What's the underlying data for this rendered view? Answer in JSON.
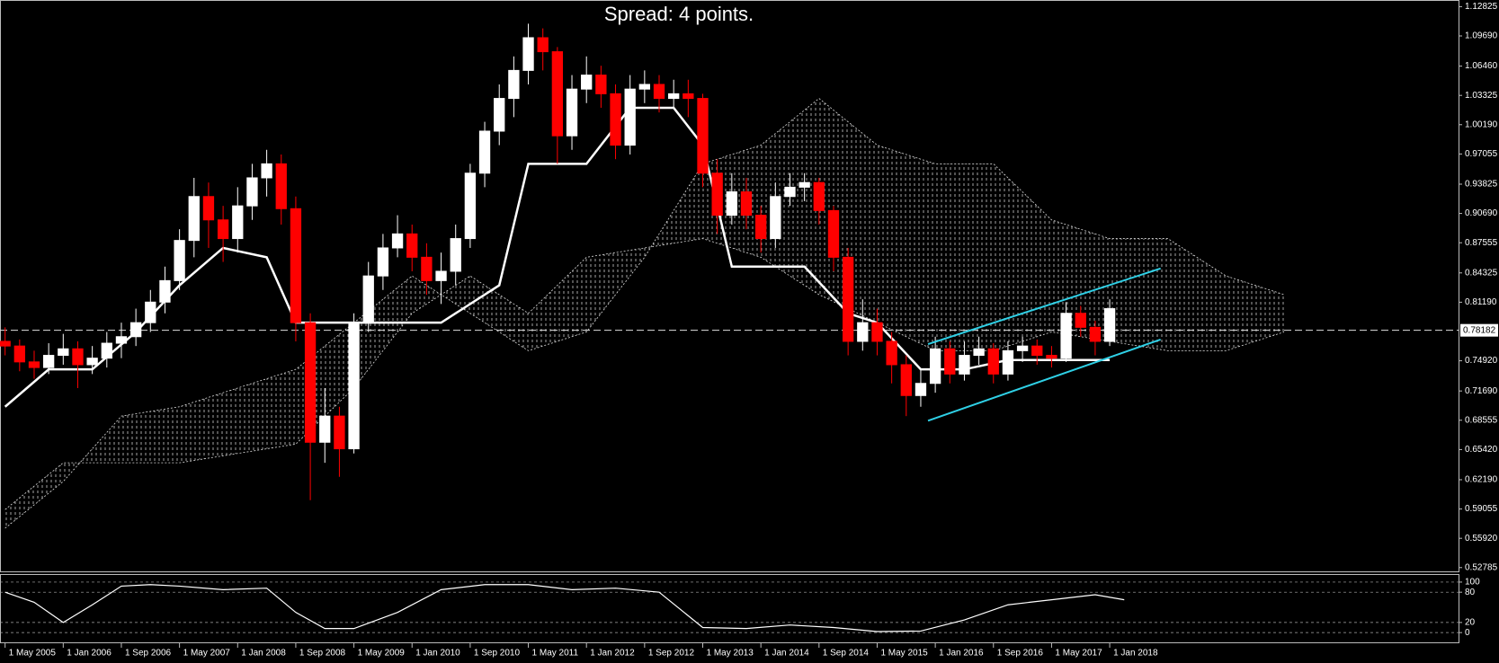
{
  "chart_data": [
    {
      "type": "candlestick",
      "title": "Spread: 4 points.",
      "x": [
        0,
        2,
        4,
        6,
        8,
        10,
        12,
        14,
        16,
        18,
        20,
        22,
        24,
        26,
        28,
        30,
        32,
        34,
        36,
        38,
        40,
        42,
        44,
        46,
        48,
        50,
        52,
        54,
        56,
        58,
        60,
        62,
        64,
        66,
        68,
        70,
        72,
        74,
        76,
        78,
        80,
        82,
        84,
        86,
        88,
        90,
        92,
        94,
        96,
        98,
        100,
        102,
        104,
        106,
        108,
        110,
        112,
        114,
        116,
        118,
        120,
        122,
        124,
        126,
        128,
        130,
        132,
        134,
        136,
        138,
        140,
        142,
        144,
        146,
        148,
        150,
        152
      ],
      "ohlc": [
        [
          0.77,
          0.785,
          0.755,
          0.765
        ],
        [
          0.765,
          0.772,
          0.738,
          0.748
        ],
        [
          0.748,
          0.76,
          0.73,
          0.742
        ],
        [
          0.742,
          0.768,
          0.735,
          0.755
        ],
        [
          0.755,
          0.778,
          0.745,
          0.762
        ],
        [
          0.762,
          0.77,
          0.72,
          0.745
        ],
        [
          0.745,
          0.765,
          0.735,
          0.752
        ],
        [
          0.752,
          0.78,
          0.742,
          0.768
        ],
        [
          0.768,
          0.79,
          0.752,
          0.775
        ],
        [
          0.775,
          0.805,
          0.765,
          0.79
        ],
        [
          0.79,
          0.825,
          0.78,
          0.812
        ],
        [
          0.812,
          0.85,
          0.8,
          0.835
        ],
        [
          0.835,
          0.89,
          0.825,
          0.878
        ],
        [
          0.878,
          0.945,
          0.86,
          0.925
        ],
        [
          0.925,
          0.94,
          0.87,
          0.9
        ],
        [
          0.9,
          0.915,
          0.855,
          0.88
        ],
        [
          0.88,
          0.935,
          0.865,
          0.915
        ],
        [
          0.915,
          0.96,
          0.9,
          0.945
        ],
        [
          0.945,
          0.975,
          0.925,
          0.96
        ],
        [
          0.96,
          0.97,
          0.895,
          0.912
        ],
        [
          0.912,
          0.925,
          0.77,
          0.79
        ],
        [
          0.79,
          0.8,
          0.6,
          0.662
        ],
        [
          0.662,
          0.72,
          0.64,
          0.69
        ],
        [
          0.69,
          0.7,
          0.625,
          0.655
        ],
        [
          0.655,
          0.8,
          0.65,
          0.79
        ],
        [
          0.79,
          0.855,
          0.78,
          0.84
        ],
        [
          0.84,
          0.885,
          0.825,
          0.87
        ],
        [
          0.87,
          0.905,
          0.86,
          0.885
        ],
        [
          0.885,
          0.895,
          0.845,
          0.86
        ],
        [
          0.86,
          0.875,
          0.82,
          0.835
        ],
        [
          0.835,
          0.865,
          0.81,
          0.845
        ],
        [
          0.845,
          0.895,
          0.83,
          0.88
        ],
        [
          0.88,
          0.96,
          0.87,
          0.95
        ],
        [
          0.95,
          1.005,
          0.935,
          0.995
        ],
        [
          0.995,
          1.045,
          0.98,
          1.03
        ],
        [
          1.03,
          1.075,
          1.01,
          1.06
        ],
        [
          1.06,
          1.11,
          1.045,
          1.095
        ],
        [
          1.095,
          1.105,
          1.06,
          1.08
        ],
        [
          1.08,
          1.085,
          0.96,
          0.99
        ],
        [
          0.99,
          1.055,
          0.975,
          1.04
        ],
        [
          1.04,
          1.075,
          1.025,
          1.055
        ],
        [
          1.055,
          1.065,
          1.02,
          1.035
        ],
        [
          1.035,
          1.045,
          0.965,
          0.98
        ],
        [
          0.98,
          1.055,
          0.97,
          1.04
        ],
        [
          1.04,
          1.06,
          1.025,
          1.045
        ],
        [
          1.045,
          1.055,
          1.015,
          1.03
        ],
        [
          1.03,
          1.05,
          1.02,
          1.035
        ],
        [
          1.035,
          1.05,
          1.01,
          1.03
        ],
        [
          1.03,
          1.035,
          0.935,
          0.95
        ],
        [
          0.95,
          0.965,
          0.885,
          0.905
        ],
        [
          0.905,
          0.95,
          0.895,
          0.93
        ],
        [
          0.93,
          0.945,
          0.89,
          0.905
        ],
        [
          0.905,
          0.915,
          0.865,
          0.88
        ],
        [
          0.88,
          0.94,
          0.87,
          0.925
        ],
        [
          0.925,
          0.95,
          0.915,
          0.935
        ],
        [
          0.935,
          0.95,
          0.92,
          0.94
        ],
        [
          0.94,
          0.945,
          0.895,
          0.91
        ],
        [
          0.91,
          0.915,
          0.845,
          0.86
        ],
        [
          0.86,
          0.87,
          0.755,
          0.77
        ],
        [
          0.77,
          0.815,
          0.76,
          0.79
        ],
        [
          0.79,
          0.805,
          0.755,
          0.77
        ],
        [
          0.77,
          0.78,
          0.725,
          0.745
        ],
        [
          0.745,
          0.755,
          0.69,
          0.712
        ],
        [
          0.712,
          0.74,
          0.7,
          0.725
        ],
        [
          0.725,
          0.775,
          0.715,
          0.762
        ],
        [
          0.762,
          0.77,
          0.725,
          0.735
        ],
        [
          0.735,
          0.77,
          0.728,
          0.755
        ],
        [
          0.755,
          0.775,
          0.745,
          0.762
        ],
        [
          0.762,
          0.768,
          0.725,
          0.735
        ],
        [
          0.735,
          0.77,
          0.728,
          0.76
        ],
        [
          0.76,
          0.775,
          0.748,
          0.765
        ],
        [
          0.765,
          0.772,
          0.745,
          0.755
        ],
        [
          0.755,
          0.765,
          0.742,
          0.752
        ],
        [
          0.752,
          0.812,
          0.748,
          0.8
        ],
        [
          0.8,
          0.808,
          0.775,
          0.785
        ],
        [
          0.785,
          0.792,
          0.755,
          0.77
        ],
        [
          0.77,
          0.815,
          0.765,
          0.805
        ]
      ],
      "up_color": "#ffffff",
      "down_color": "#ff0000",
      "xlim": [
        -0.7,
        200
      ],
      "xticks": [
        {
          "value": 0,
          "label": "1 May 2005"
        },
        {
          "value": 8,
          "label": "1 Jan 2006"
        },
        {
          "value": 16,
          "label": "1 Sep 2006"
        },
        {
          "value": 24,
          "label": "1 May 2007"
        },
        {
          "value": 32,
          "label": "1 Jan 2008"
        },
        {
          "value": 40,
          "label": "1 Sep 2008"
        },
        {
          "value": 48,
          "label": "1 May 2009"
        },
        {
          "value": 56,
          "label": "1 Jan 2010"
        },
        {
          "value": 64,
          "label": "1 Sep 2010"
        },
        {
          "value": 72,
          "label": "1 May 2011"
        },
        {
          "value": 80,
          "label": "1 Jan 2012"
        },
        {
          "value": 88,
          "label": "1 Sep 2012"
        },
        {
          "value": 96,
          "label": "1 May 2013"
        },
        {
          "value": 104,
          "label": "1 Jan 2014"
        },
        {
          "value": 112,
          "label": "1 Sep 2014"
        },
        {
          "value": 120,
          "label": "1 May 2015"
        },
        {
          "value": 128,
          "label": "1 Jan 2016"
        },
        {
          "value": 136,
          "label": "1 Sep 2016"
        },
        {
          "value": 144,
          "label": "1 May 2017"
        },
        {
          "value": 152,
          "label": "1 Jan 2018"
        }
      ],
      "ylim": [
        0.5238,
        1.1344
      ],
      "yticks": [
        1.12825,
        {
          "value": 1.0969,
          "label": "1.09690"
        },
        {
          "value": 1.0646,
          "label": "1.06460"
        },
        1.03325,
        {
          "value": 1.0019,
          "label": "1.00190"
        },
        0.97055,
        0.93825,
        {
          "value": 0.9069,
          "label": "0.90690"
        },
        0.87555,
        0.84325,
        {
          "value": 0.8119,
          "label": "0.81190"
        },
        {
          "value": 0.7492,
          "label": "0.74920"
        },
        {
          "value": 0.7169,
          "label": "0.71690"
        },
        0.68555,
        {
          "value": 0.6542,
          "label": "0.65420"
        },
        {
          "value": 0.6219,
          "label": "0.62190"
        },
        0.59055,
        {
          "value": 0.5592,
          "label": "0.55920"
        },
        0.52785
      ],
      "last_price": 0.78182,
      "cloud": {
        "color": "#dddddd",
        "x": [
          0,
          8,
          16,
          24,
          32,
          40,
          48,
          56,
          64,
          72,
          80,
          88,
          96,
          104,
          112,
          120,
          128,
          136,
          144,
          152,
          160,
          168,
          176
        ],
        "span_a": [
          0.57,
          0.62,
          0.69,
          0.7,
          0.72,
          0.74,
          0.79,
          0.84,
          0.8,
          0.76,
          0.78,
          0.86,
          0.96,
          0.98,
          1.03,
          0.98,
          0.96,
          0.96,
          0.9,
          0.88,
          0.88,
          0.84,
          0.82
        ],
        "span_b": [
          0.59,
          0.64,
          0.64,
          0.64,
          0.65,
          0.66,
          0.72,
          0.8,
          0.84,
          0.8,
          0.86,
          0.87,
          0.88,
          0.86,
          0.82,
          0.79,
          0.76,
          0.76,
          0.78,
          0.77,
          0.76,
          0.76,
          0.78
        ]
      },
      "kijun": {
        "color": "#ffffff",
        "x": [
          0,
          6,
          12,
          18,
          24,
          30,
          36,
          40,
          44,
          52,
          60,
          68,
          72,
          80,
          86,
          92,
          96,
          100,
          106,
          110,
          116,
          120,
          126,
          132,
          138,
          144,
          152
        ],
        "values": [
          0.7,
          0.74,
          0.74,
          0.78,
          0.83,
          0.87,
          0.86,
          0.79,
          0.79,
          0.79,
          0.79,
          0.83,
          0.96,
          0.96,
          1.02,
          1.02,
          0.98,
          0.85,
          0.85,
          0.85,
          0.8,
          0.79,
          0.74,
          0.74,
          0.75,
          0.75,
          0.75
        ]
      },
      "channel_color": "#2fd0e6",
      "channel": [
        {
          "x": [
            127,
            159
          ],
          "values": [
            0.767,
            0.848
          ]
        },
        {
          "x": [
            127,
            159
          ],
          "values": [
            0.685,
            0.772
          ]
        }
      ]
    },
    {
      "type": "line",
      "color": "#ffffff",
      "x": [
        0,
        4,
        8,
        12,
        16,
        20,
        24,
        30,
        36,
        40,
        44,
        48,
        54,
        60,
        66,
        72,
        78,
        84,
        90,
        96,
        102,
        108,
        114,
        120,
        126,
        132,
        138,
        144,
        150,
        154
      ],
      "values": [
        80,
        60,
        20,
        55,
        92,
        95,
        92,
        85,
        88,
        40,
        8,
        8,
        40,
        85,
        95,
        95,
        85,
        88,
        80,
        10,
        8,
        15,
        10,
        2,
        3,
        25,
        55,
        65,
        75,
        65
      ],
      "xlim": [
        -0.7,
        200
      ],
      "ylim": [
        -14,
        107
      ],
      "yticks": [
        0,
        20,
        80,
        100
      ]
    }
  ]
}
